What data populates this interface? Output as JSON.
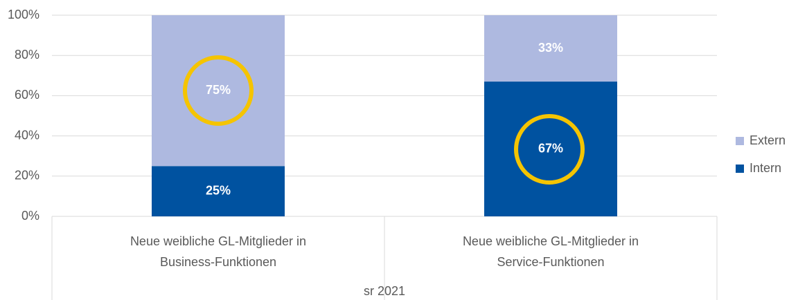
{
  "chart_data": {
    "type": "stacked_bar",
    "categories": [
      [
        "Neue weibliche GL-Mitglieder in",
        "Business-Funktionen"
      ],
      [
        "Neue weibliche GL-Mitglieder in",
        "Service-Funktionen"
      ]
    ],
    "group_label": "sr 2021",
    "series": [
      {
        "name": "Intern",
        "color": "#0052a0",
        "values": [
          25,
          67
        ],
        "value_labels": [
          "25%",
          "67%"
        ]
      },
      {
        "name": "Extern",
        "color": "#aeb9e0",
        "values": [
          75,
          33
        ],
        "value_labels": [
          "75%",
          "33%"
        ]
      }
    ],
    "ylim": [
      0,
      100
    ],
    "yticks": [
      {
        "value": 0,
        "label": "0%"
      },
      {
        "value": 20,
        "label": "20%"
      },
      {
        "value": 40,
        "label": "40%"
      },
      {
        "value": 60,
        "label": "60%"
      },
      {
        "value": 80,
        "label": "80%"
      },
      {
        "value": 100,
        "label": "100%"
      }
    ],
    "grid": true,
    "legend": "right"
  }
}
